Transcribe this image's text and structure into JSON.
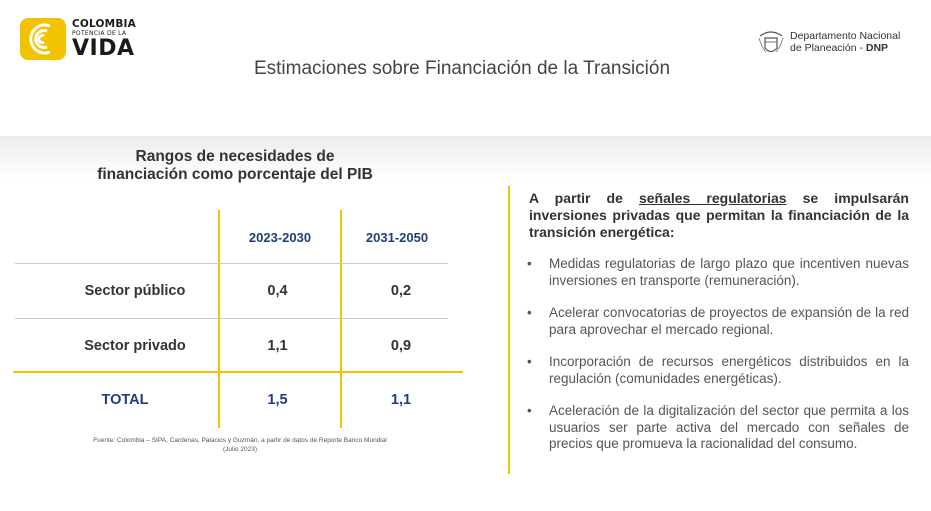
{
  "logo_left": {
    "line1": "COLOMBIA",
    "line2": "POTENCIA DE LA",
    "line3": "VIDA",
    "color": "#f2c300"
  },
  "logo_right": {
    "line1": "Departamento Nacional",
    "line2_prefix": "de Planeación - ",
    "line2_bold": "DNP"
  },
  "title": "Estimaciones sobre Financiación de la Transición",
  "table": {
    "title_line1": "Rangos de necesidades de",
    "title_line2": "financiación como porcentaje del PIB",
    "columns": [
      "2023-2030",
      "2031-2050"
    ],
    "rows": [
      {
        "label": "Sector público",
        "values": [
          "0,4",
          "0,2"
        ]
      },
      {
        "label": "Sector privado",
        "values": [
          "1,1",
          "0,9"
        ]
      },
      {
        "label": "TOTAL",
        "values": [
          "1,5",
          "1,1"
        ]
      }
    ],
    "source_line1": "Fuente: Colombia – SIPA, Cardenas, Palacios y Guzmán, a partir de datos de Reporte Banco Mundial",
    "source_line2": "(Julio 2023)"
  },
  "right": {
    "intro_prefix": "A partir de ",
    "intro_underlined": "señales regulatorias",
    "intro_suffix": " se impulsarán inversiones privadas que permitan la financiación de la transición energética:",
    "bullet_char": "•",
    "bullets": [
      "Medidas regulatorias de largo plazo que incentiven nuevas inversiones en transporte (remuneración).",
      "Acelerar convocatorias de proyectos de expansión de la red para aprovechar el mercado regional.",
      "Incorporación de recursos energéticos distribuidos en la regulación (comunidades energéticas).",
      "Aceleración de la digitalización del sector que permita a los usuarios ser parte activa del mercado con señales de precios que promueva la racionalidad del consumo."
    ]
  },
  "colors": {
    "accent": "#f2c300",
    "header_blue": "#1f3e7a",
    "text": "#333333"
  }
}
